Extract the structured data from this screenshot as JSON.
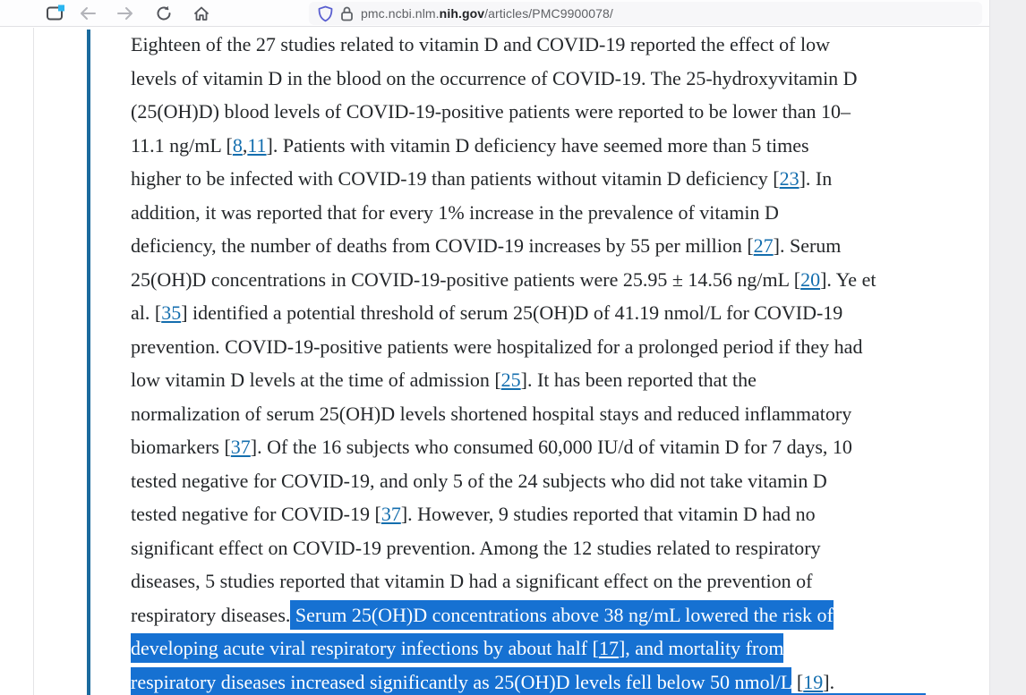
{
  "theme": {
    "selection-blue": "#1671d2",
    "link-blue": "#146eae",
    "quote-bar-blue": "#1b6b9e",
    "body-text": "#24272a"
  },
  "browser": {
    "url_prefix": "pmc.ncbi.nlm.",
    "url_domain_bold": "nih.gov",
    "url_path": "/articles/PMC9900078/",
    "icons": {
      "firefox_view": "window-with-cyan-dot",
      "back": "left-arrow",
      "forward": "right-arrow",
      "reload": "circular-arrow",
      "home": "house",
      "tracking_shield": "shield-outline",
      "https_lock": "padlock-outline"
    }
  },
  "article": {
    "paragraph_lines": [
      [
        {
          "t": "Eighteen of the 27 studies related to vitamin D and COVID-19 reported the effect of low",
          "s": "t"
        }
      ],
      [
        {
          "t": "levels of vitamin D in the blood on the occurrence of COVID-19. The 25-hydroxyvitamin D",
          "s": "t"
        }
      ],
      [
        {
          "t": "(25(OH)D) blood levels of COVID-19-positive patients were reported to be lower than 10–",
          "s": "t"
        }
      ],
      [
        {
          "t": "11.1 ng/mL [",
          "s": "t"
        },
        {
          "t": "8",
          "s": "link"
        },
        {
          "t": ",",
          "s": "t"
        },
        {
          "t": "11",
          "s": "link"
        },
        {
          "t": "]. Patients with vitamin D deficiency have seemed more than 5 times",
          "s": "t"
        }
      ],
      [
        {
          "t": "higher to be infected with COVID-19 than patients without vitamin D deficiency [",
          "s": "t"
        },
        {
          "t": "23",
          "s": "link"
        },
        {
          "t": "]. In",
          "s": "t"
        }
      ],
      [
        {
          "t": "addition, it was reported that for every 1% increase in the prevalence of vitamin D",
          "s": "t"
        }
      ],
      [
        {
          "t": "deficiency, the number of deaths from COVID-19 increases by 55 per million [",
          "s": "t"
        },
        {
          "t": "27",
          "s": "link"
        },
        {
          "t": "]. Serum",
          "s": "t"
        }
      ],
      [
        {
          "t": "25(OH)D concentrations in COVID-19-positive patients were 25.95 ± 14.56 ng/mL [",
          "s": "t"
        },
        {
          "t": "20",
          "s": "link"
        },
        {
          "t": "]. Ye et",
          "s": "t"
        }
      ],
      [
        {
          "t": "al. [",
          "s": "t"
        },
        {
          "t": "35",
          "s": "link"
        },
        {
          "t": "] identified a potential threshold of serum 25(OH)D of 41.19 nmol/L for COVID-19",
          "s": "t"
        }
      ],
      [
        {
          "t": "prevention. COVID-19-positive patients were hospitalized for a prolonged period if they had",
          "s": "t"
        }
      ],
      [
        {
          "t": "low vitamin D levels at the time of admission [",
          "s": "t"
        },
        {
          "t": "25",
          "s": "link"
        },
        {
          "t": "]. It has been reported that the",
          "s": "t"
        }
      ],
      [
        {
          "t": "normalization of serum 25(OH)D levels shortened hospital stays and reduced inflammatory",
          "s": "t"
        }
      ],
      [
        {
          "t": "biomarkers [",
          "s": "t"
        },
        {
          "t": "37",
          "s": "link"
        },
        {
          "t": "]. Of the 16 subjects who consumed 60,000 IU/d of vitamin D for 7 days, 10",
          "s": "t"
        }
      ],
      [
        {
          "t": "tested negative for COVID-19, and only 5 of the 24 subjects who did not take vitamin D",
          "s": "t"
        }
      ],
      [
        {
          "t": "tested negative for COVID-19 [",
          "s": "t"
        },
        {
          "t": "37",
          "s": "link"
        },
        {
          "t": "]. However, 9 studies reported that vitamin D had no",
          "s": "t"
        }
      ],
      [
        {
          "t": "significant effect on COVID-19 prevention. Among the 12 studies related to respiratory",
          "s": "t"
        }
      ],
      [
        {
          "t": "diseases, 5 studies reported that vitamin D had a significant effect on the prevention of",
          "s": "t"
        }
      ],
      [
        {
          "t": "respiratory diseases.",
          "s": "t"
        },
        {
          "t": " Serum 25(OH)D concentrations above 38 ng/mL lowered the risk of",
          "s": "hl"
        }
      ],
      [
        {
          "t": "developing acute viral respiratory infections by about half [",
          "s": "hl"
        },
        {
          "t": "17",
          "s": "hl-link"
        },
        {
          "t": "], and mortality from",
          "s": "hl"
        }
      ],
      [
        {
          "t": "respiratory diseases increased significantly as 25(OH)D levels fell below 50 nmol/L",
          "s": "hl"
        },
        {
          "t": " [",
          "s": "t"
        },
        {
          "t": "19",
          "s": "link"
        },
        {
          "t": "].",
          "s": "t"
        }
      ]
    ]
  }
}
